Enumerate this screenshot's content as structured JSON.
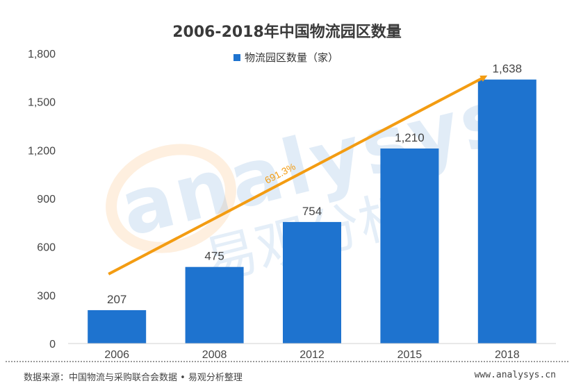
{
  "chart_data": {
    "type": "bar",
    "title": "2006-2018年中国物流园区数量",
    "categories": [
      "2006",
      "2008",
      "2012",
      "2015",
      "2018"
    ],
    "series": [
      {
        "name": "物流园区数量（家）",
        "values": [
          207,
          475,
          754,
          1210,
          1638
        ]
      }
    ],
    "data_labels": [
      "207",
      "475",
      "754",
      "1,210",
      "1,638"
    ],
    "ylim": [
      0,
      1800
    ],
    "yticks": [
      0,
      300,
      600,
      900,
      1200,
      1500,
      1800
    ],
    "ytick_labels": [
      "0",
      "300",
      "600",
      "900",
      "1,200",
      "1,500",
      "1,800"
    ],
    "annotation": {
      "text": "691.3%",
      "from_category": "2006",
      "to_category": "2018"
    },
    "legend_position": "top-center",
    "grid": false,
    "colors": {
      "bar": "#1e73cf",
      "arrow": "#f39c12"
    }
  },
  "watermark": {
    "latin": "analysys",
    "cn": "易观分析"
  },
  "footer": {
    "source": "数据来源：中国物流与采购联合会数据 • 易观分析整理",
    "site": "www.analysys.cn"
  }
}
